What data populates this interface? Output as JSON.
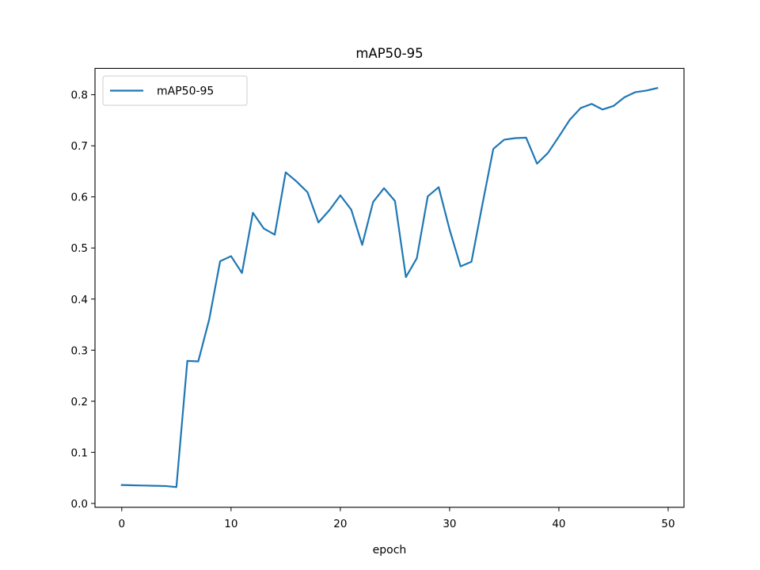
{
  "chart_data": {
    "type": "line",
    "title": "mAP50-95",
    "xlabel": "epoch",
    "ylabel": "",
    "xlim": [
      -2.45,
      51.45
    ],
    "ylim": [
      -0.0076,
      0.8515
    ],
    "xticks": [
      0,
      10,
      20,
      30,
      40,
      50
    ],
    "yticks": [
      0.0,
      0.1,
      0.2,
      0.3,
      0.4,
      0.5,
      0.6,
      0.7,
      0.8
    ],
    "xtick_labels": [
      "0",
      "10",
      "20",
      "30",
      "40",
      "50"
    ],
    "ytick_labels": [
      "0.0",
      "0.1",
      "0.2",
      "0.3",
      "0.4",
      "0.5",
      "0.6",
      "0.7",
      "0.8"
    ],
    "grid": false,
    "legend_position": "top-left",
    "series": [
      {
        "name": "mAP50-95",
        "color": "#1f77b4",
        "x": [
          0,
          1,
          2,
          3,
          4,
          5,
          6,
          7,
          8,
          9,
          10,
          11,
          12,
          13,
          14,
          15,
          16,
          17,
          18,
          19,
          20,
          21,
          22,
          23,
          24,
          25,
          26,
          27,
          28,
          29,
          30,
          31,
          32,
          33,
          34,
          35,
          36,
          37,
          38,
          39,
          40,
          41,
          42,
          43,
          44,
          45,
          46,
          47,
          48,
          49
        ],
        "y": [
          0.036,
          0.0355,
          0.035,
          0.0345,
          0.034,
          0.032,
          0.279,
          0.278,
          0.36,
          0.474,
          0.484,
          0.451,
          0.569,
          0.538,
          0.526,
          0.648,
          0.63,
          0.609,
          0.55,
          0.574,
          0.603,
          0.575,
          0.506,
          0.59,
          0.617,
          0.592,
          0.443,
          0.48,
          0.601,
          0.619,
          0.536,
          0.464,
          0.473,
          0.585,
          0.694,
          0.712,
          0.715,
          0.716,
          0.665,
          0.686,
          0.718,
          0.751,
          0.774,
          0.782,
          0.771,
          0.778,
          0.795,
          0.805,
          0.808,
          0.813
        ]
      }
    ]
  }
}
